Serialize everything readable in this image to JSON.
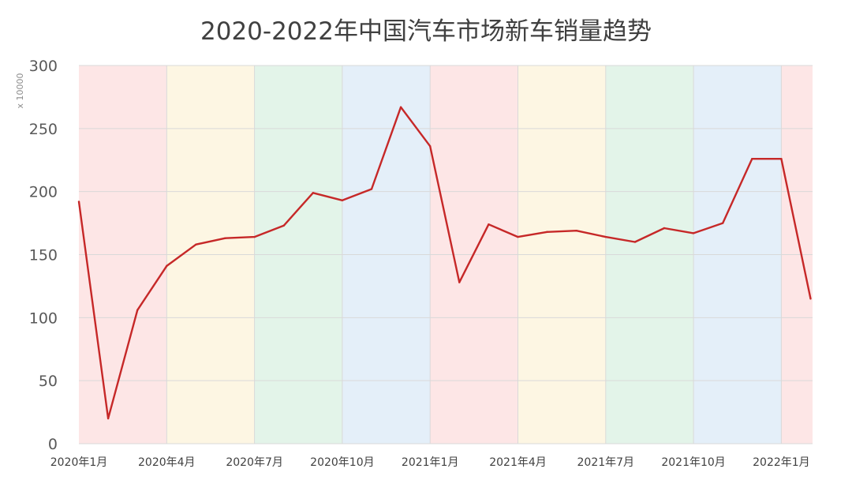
{
  "chart_data": {
    "type": "line",
    "title": "2020-2022年中国汽车市场新车销量趋势",
    "xlabel": "",
    "ylabel": "",
    "y_unit_label": "x 10000",
    "ylim": [
      0,
      300
    ],
    "yticks": [
      0,
      50,
      100,
      150,
      200,
      250,
      300
    ],
    "grid": true,
    "x": [
      "2020-01",
      "2020-02",
      "2020-03",
      "2020-04",
      "2020-05",
      "2020-06",
      "2020-07",
      "2020-08",
      "2020-09",
      "2020-10",
      "2020-11",
      "2020-12",
      "2021-01",
      "2021-02",
      "2021-03",
      "2021-04",
      "2021-05",
      "2021-06",
      "2021-07",
      "2021-08",
      "2021-09",
      "2021-10",
      "2021-11",
      "2021-12",
      "2022-01",
      "2022-02"
    ],
    "x_tick_labels": [
      "2020年1月",
      "2020年4月",
      "2020年7月",
      "2020年10月",
      "2021年1月",
      "2021年4月",
      "2021年7月",
      "2021年10月",
      "2022年1月"
    ],
    "x_tick_months": [
      "2020-01",
      "2020-04",
      "2020-07",
      "2020-10",
      "2021-01",
      "2021-04",
      "2021-07",
      "2021-10",
      "2022-01"
    ],
    "series": [
      {
        "color": "#c62828",
        "values": [
          192,
          20,
          106,
          141,
          158,
          163,
          164,
          173,
          199,
          193,
          202,
          267,
          236,
          128,
          174,
          164,
          168,
          169,
          164,
          160,
          171,
          167,
          175,
          226,
          226,
          115
        ]
      }
    ],
    "quarter_band_colors": [
      "#fde6e6",
      "#fdf6e3",
      "#e3f4e9",
      "#e4eff9"
    ]
  }
}
